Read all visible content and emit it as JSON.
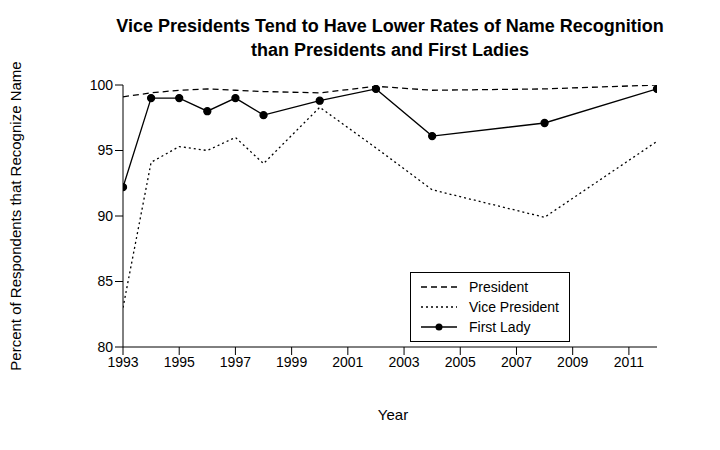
{
  "chart_data": {
    "type": "line",
    "title": "Vice Presidents Tend to Have Lower Rates of Name Recognition than Presidents and First Ladies",
    "x_label": "Year",
    "y_label": "Percent of Respondents that Recognize Name",
    "x": [
      1993,
      1994,
      1995,
      1996,
      1997,
      1998,
      2000,
      2002,
      2004,
      2008,
      2012
    ],
    "series": [
      {
        "name": "President",
        "color": "#000000",
        "line_style": "dashed",
        "marker": "none",
        "values": [
          99.1,
          99.4,
          99.6,
          99.7,
          99.6,
          99.5,
          99.4,
          99.9,
          99.6,
          99.7,
          100.0
        ]
      },
      {
        "name": "Vice President",
        "color": "#000000",
        "line_style": "dotted",
        "marker": "none",
        "values": [
          83.0,
          94.1,
          95.3,
          95.0,
          96.0,
          94.0,
          98.3,
          95.2,
          92.0,
          89.9,
          95.7
        ]
      },
      {
        "name": "First Lady",
        "color": "#000000",
        "line_style": "solid",
        "marker": "circle",
        "values": [
          92.2,
          99.0,
          99.0,
          98.0,
          99.0,
          97.7,
          98.8,
          99.7,
          96.1,
          97.1,
          99.7
        ]
      }
    ],
    "xlim": [
      1993,
      2012
    ],
    "xticks": [
      1993,
      1995,
      1997,
      1999,
      2001,
      2003,
      2005,
      2007,
      2009,
      2011
    ],
    "ylim": [
      80,
      100
    ],
    "yticks": [
      80,
      85,
      90,
      95,
      100
    ],
    "grid": false,
    "legend": "lower right"
  }
}
